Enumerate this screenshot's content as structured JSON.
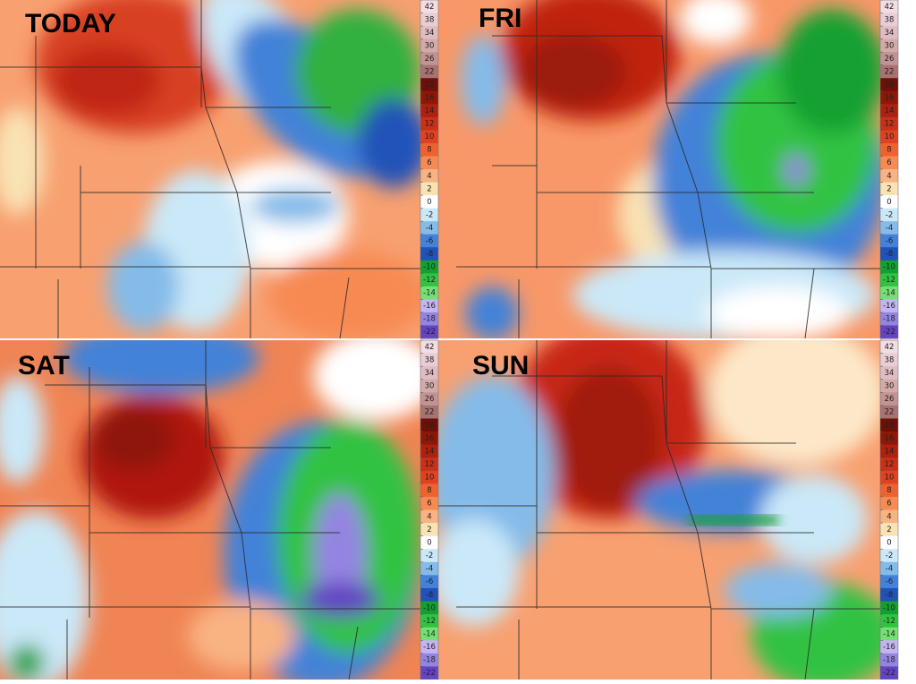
{
  "panels": [
    {
      "label": "TODAY"
    },
    {
      "label": "FRI"
    },
    {
      "label": "SAT"
    },
    {
      "label": "SUN"
    }
  ],
  "colorbar": {
    "ticks": [
      42,
      38,
      34,
      30,
      26,
      22,
      18,
      16,
      14,
      12,
      10,
      8,
      6,
      4,
      2,
      0,
      -2,
      -4,
      -6,
      -8,
      -10,
      -12,
      -14,
      -16,
      -18,
      -22
    ],
    "colors": [
      "#f2dde4",
      "#e9cdd5",
      "#dfbcc3",
      "#d3aaaa",
      "#c39292",
      "#a87272",
      "#6e1008",
      "#8e1808",
      "#ae2010",
      "#c83018",
      "#de4222",
      "#ee6230",
      "#f78a52",
      "#f9b282",
      "#f9e2b4",
      "#ffffff",
      "#cae8f8",
      "#84bbe9",
      "#4382d8",
      "#2152b8",
      "#12a032",
      "#32c242",
      "#74e074",
      "#c4b4f2",
      "#9484e2",
      "#6444c2"
    ]
  }
}
